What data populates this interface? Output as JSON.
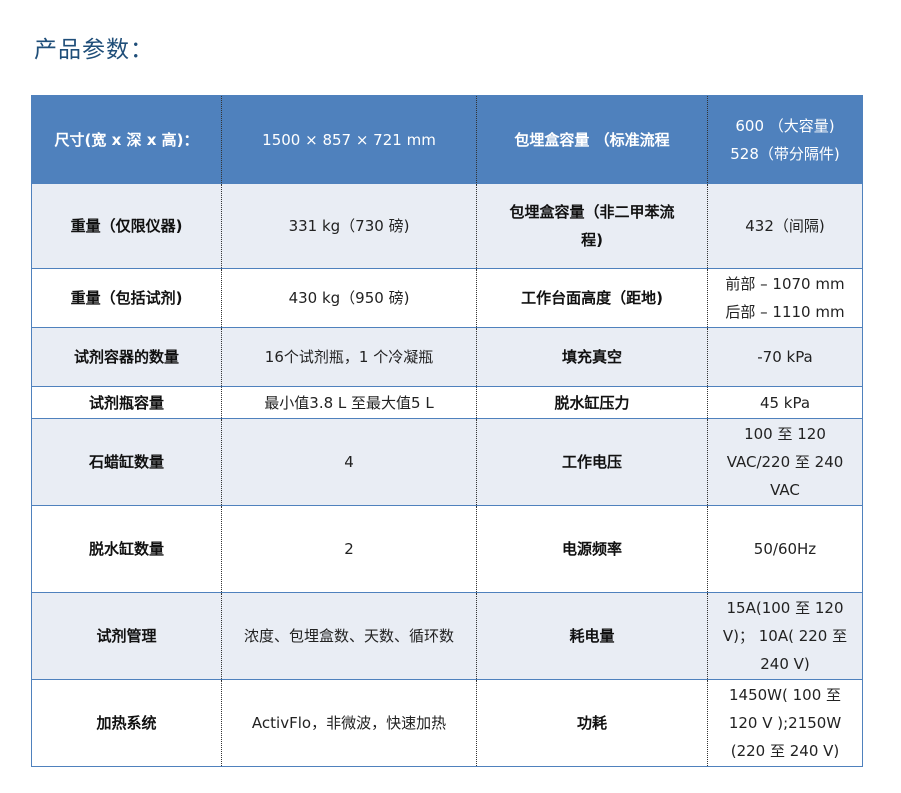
{
  "title": "产品参数：",
  "colors": {
    "header_bg": "#4f81bd",
    "alt_row_bg": "#e9edf4",
    "title": "#1f4e79"
  },
  "rows": [
    {
      "k1": "尺寸(宽 x 深 x 高)：",
      "v1": "1500 × 857 × 721 mm",
      "k2": "包埋盒容量 （标准流程",
      "v2": "600 （大容量)\n528（带分隔件)"
    },
    {
      "k1": "重量（仅限仪器)",
      "v1": "331 kg（730 磅)",
      "k2": "包埋盒容量（非二甲苯流\n程)",
      "v2": "432（间隔)"
    },
    {
      "k1": "重量（包括试剂)",
      "v1": "430 kg（950 磅)",
      "k2": "工作台面高度（距地)",
      "v2": "前部 – 1070 mm\n后部 – 1110 mm"
    },
    {
      "k1": "试剂容器的数量",
      "v1": "16个试剂瓶，1 个冷凝瓶",
      "k2": "填充真空",
      "v2": "-70 kPa"
    },
    {
      "k1": "试剂瓶容量",
      "v1": "最小值3.8 L 至最大值5 L",
      "k2": "脱水缸压力",
      "v2": "45 kPa"
    },
    {
      "k1": "石蜡缸数量",
      "v1": "4",
      "k2": "工作电压",
      "v2": "100 至 120\nVAC/220 至 240\nVAC"
    },
    {
      "k1": "脱水缸数量",
      "v1": "2",
      "k2": "电源频率",
      "v2": "50/60Hz"
    },
    {
      "k1": "试剂管理",
      "v1": "浓度、包埋盒数、天数、循环数",
      "k2": "耗电量",
      "v2": "15A(100 至 120\nV)； 10A( 220 至\n240 V)"
    },
    {
      "k1": "加热系统",
      "v1": "ActivFlo，非微波，快速加热",
      "k2": "功耗",
      "v2": "1450W( 100 至\n120 V );2150W\n(220 至 240 V)"
    }
  ]
}
